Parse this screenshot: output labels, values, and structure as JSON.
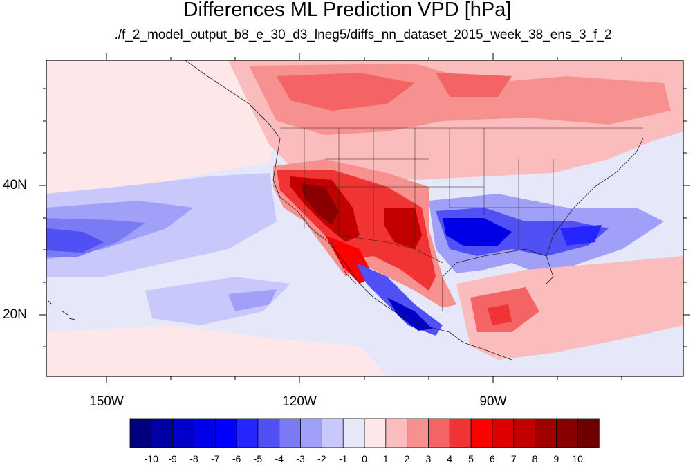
{
  "title": "Differences ML Prediction VPD [hPa]",
  "subtitle": "./f_2_model_output_b8_e_30_d3_lneg5/diffs_nn_dataset_2015_week_38_ens_3_f_2",
  "map": {
    "region": "North America and eastern Pacific",
    "projection": "cylindrical equidistant",
    "lat_ticks": [
      "40N",
      "20N"
    ],
    "lon_ticks": [
      "150W",
      "120W",
      "90W"
    ],
    "background_value_color": "#e6e8fa"
  },
  "colorbar": {
    "labels": [
      "-10",
      "-9",
      "-8",
      "-7",
      "-6",
      "-5",
      "-4",
      "-3",
      "-2",
      "-1",
      "0",
      "1",
      "2",
      "3",
      "4",
      "5",
      "6",
      "7",
      "8",
      "9",
      "10"
    ],
    "colors": [
      "#00007f",
      "#0000a6",
      "#0000c8",
      "#0000e6",
      "#0000ff",
      "#2525ff",
      "#5050f5",
      "#7a7af5",
      "#a0a0f8",
      "#c8c8fa",
      "#e6e8fa",
      "#fde7e8",
      "#fbbcbd",
      "#f7918f",
      "#f46464",
      "#f03434",
      "#ff0000",
      "#dd0000",
      "#c20000",
      "#a00000",
      "#8a0000",
      "#6e0000"
    ]
  }
}
